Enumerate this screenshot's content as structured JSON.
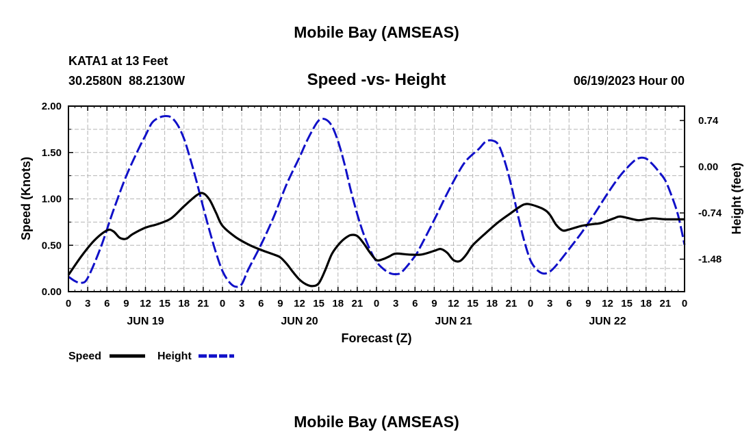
{
  "header": {
    "title": "Mobile Bay (AMSEAS)",
    "station": "KATA1 at 13 Feet",
    "coords": "30.2580N  88.2130W",
    "subtitle": "Speed -vs- Height",
    "datetime": "06/19/2023 Hour 00"
  },
  "footer": {
    "title": "Mobile Bay (AMSEAS)"
  },
  "colors": {
    "speed": "#000000",
    "height": "#1010c8",
    "grid": "#b4b4b4"
  },
  "chart_data": {
    "type": "line",
    "title": "Speed -vs- Height",
    "xlabel": "Forecast (Z)",
    "ylabel": "Speed (Knots)",
    "y2label": "Height (feet)",
    "x_unit": "hours from 06/19/2023 00Z",
    "xlim": [
      0,
      96
    ],
    "ylim": [
      0,
      2.0
    ],
    "y2lim": [
      -2.0,
      0.97
    ],
    "grid": true,
    "legend_position": "bottom-left",
    "x_ticks": [
      {
        "x": 0,
        "label": "0"
      },
      {
        "x": 3,
        "label": "3"
      },
      {
        "x": 6,
        "label": "6"
      },
      {
        "x": 9,
        "label": "9"
      },
      {
        "x": 12,
        "label": "12"
      },
      {
        "x": 15,
        "label": "15"
      },
      {
        "x": 18,
        "label": "18"
      },
      {
        "x": 21,
        "label": "21"
      },
      {
        "x": 24,
        "label": "0"
      },
      {
        "x": 27,
        "label": "3"
      },
      {
        "x": 30,
        "label": "6"
      },
      {
        "x": 33,
        "label": "9"
      },
      {
        "x": 36,
        "label": "12"
      },
      {
        "x": 39,
        "label": "15"
      },
      {
        "x": 42,
        "label": "18"
      },
      {
        "x": 45,
        "label": "21"
      },
      {
        "x": 48,
        "label": "0"
      },
      {
        "x": 51,
        "label": "3"
      },
      {
        "x": 54,
        "label": "6"
      },
      {
        "x": 57,
        "label": "9"
      },
      {
        "x": 60,
        "label": "12"
      },
      {
        "x": 63,
        "label": "15"
      },
      {
        "x": 66,
        "label": "18"
      },
      {
        "x": 69,
        "label": "21"
      },
      {
        "x": 72,
        "label": "0"
      },
      {
        "x": 75,
        "label": "3"
      },
      {
        "x": 78,
        "label": "6"
      },
      {
        "x": 81,
        "label": "9"
      },
      {
        "x": 84,
        "label": "12"
      },
      {
        "x": 87,
        "label": "15"
      },
      {
        "x": 90,
        "label": "18"
      },
      {
        "x": 93,
        "label": "21"
      },
      {
        "x": 96,
        "label": "0"
      }
    ],
    "day_labels": [
      {
        "x": 12,
        "label": "JUN 19"
      },
      {
        "x": 36,
        "label": "JUN 20"
      },
      {
        "x": 60,
        "label": "JUN 21"
      },
      {
        "x": 84,
        "label": "JUN 22"
      }
    ],
    "y_ticks": [
      {
        "y": 0.0,
        "label": "0.00"
      },
      {
        "y": 0.5,
        "label": "0.50"
      },
      {
        "y": 1.0,
        "label": "1.00"
      },
      {
        "y": 1.5,
        "label": "1.50"
      },
      {
        "y": 2.0,
        "label": "2.00"
      }
    ],
    "y2_ticks": [
      {
        "y": 0.74,
        "label": "0.74"
      },
      {
        "y": 0.0,
        "label": "0.00"
      },
      {
        "y": -0.74,
        "label": "-0.74"
      },
      {
        "y": -1.48,
        "label": "-1.48"
      }
    ],
    "series": [
      {
        "name": "Speed",
        "axis": "left",
        "style": "solid",
        "points": [
          [
            0,
            0.18
          ],
          [
            2,
            0.38
          ],
          [
            4,
            0.55
          ],
          [
            6,
            0.66
          ],
          [
            7,
            0.65
          ],
          [
            8,
            0.58
          ],
          [
            9,
            0.57
          ],
          [
            10,
            0.62
          ],
          [
            12,
            0.69
          ],
          [
            14,
            0.73
          ],
          [
            16,
            0.79
          ],
          [
            18,
            0.92
          ],
          [
            20,
            1.04
          ],
          [
            21,
            1.06
          ],
          [
            22,
            0.99
          ],
          [
            23,
            0.85
          ],
          [
            24,
            0.71
          ],
          [
            26,
            0.59
          ],
          [
            28,
            0.51
          ],
          [
            30,
            0.45
          ],
          [
            32,
            0.4
          ],
          [
            33,
            0.37
          ],
          [
            34,
            0.3
          ],
          [
            35,
            0.21
          ],
          [
            36,
            0.13
          ],
          [
            37,
            0.08
          ],
          [
            38,
            0.06
          ],
          [
            39,
            0.09
          ],
          [
            40,
            0.23
          ],
          [
            41,
            0.4
          ],
          [
            42,
            0.5
          ],
          [
            43,
            0.57
          ],
          [
            44,
            0.61
          ],
          [
            45,
            0.6
          ],
          [
            46,
            0.52
          ],
          [
            47,
            0.42
          ],
          [
            48,
            0.34
          ],
          [
            49,
            0.35
          ],
          [
            50,
            0.38
          ],
          [
            51,
            0.41
          ],
          [
            53,
            0.4
          ],
          [
            55,
            0.4
          ],
          [
            57,
            0.44
          ],
          [
            58,
            0.46
          ],
          [
            59,
            0.42
          ],
          [
            60,
            0.34
          ],
          [
            61,
            0.33
          ],
          [
            62,
            0.4
          ],
          [
            63,
            0.5
          ],
          [
            65,
            0.63
          ],
          [
            67,
            0.75
          ],
          [
            69,
            0.85
          ],
          [
            70,
            0.9
          ],
          [
            71,
            0.94
          ],
          [
            72,
            0.94
          ],
          [
            74,
            0.89
          ],
          [
            75,
            0.83
          ],
          [
            76,
            0.72
          ],
          [
            77,
            0.66
          ],
          [
            78,
            0.67
          ],
          [
            80,
            0.71
          ],
          [
            82,
            0.73
          ],
          [
            83,
            0.74
          ],
          [
            85,
            0.79
          ],
          [
            86,
            0.81
          ],
          [
            88,
            0.78
          ],
          [
            89,
            0.77
          ],
          [
            91,
            0.79
          ],
          [
            93,
            0.78
          ],
          [
            96,
            0.78
          ]
        ]
      },
      {
        "name": "Height",
        "axis": "right",
        "style": "dashed",
        "points": [
          [
            0,
            -1.76
          ],
          [
            1,
            -1.83
          ],
          [
            2,
            -1.86
          ],
          [
            3,
            -1.78
          ],
          [
            5,
            -1.3
          ],
          [
            7,
            -0.7
          ],
          [
            9,
            -0.15
          ],
          [
            11,
            0.3
          ],
          [
            12,
            0.5
          ],
          [
            13,
            0.7
          ],
          [
            14,
            0.78
          ],
          [
            15,
            0.81
          ],
          [
            16,
            0.79
          ],
          [
            17,
            0.67
          ],
          [
            18,
            0.45
          ],
          [
            19,
            0.12
          ],
          [
            20,
            -0.25
          ],
          [
            21,
            -0.65
          ],
          [
            22,
            -1.03
          ],
          [
            23,
            -1.38
          ],
          [
            24,
            -1.67
          ],
          [
            25,
            -1.84
          ],
          [
            26,
            -1.92
          ],
          [
            27,
            -1.88
          ],
          [
            28,
            -1.65
          ],
          [
            30,
            -1.25
          ],
          [
            32,
            -0.8
          ],
          [
            34,
            -0.28
          ],
          [
            36,
            0.15
          ],
          [
            37,
            0.38
          ],
          [
            38,
            0.58
          ],
          [
            39,
            0.74
          ],
          [
            40,
            0.76
          ],
          [
            41,
            0.66
          ],
          [
            42,
            0.41
          ],
          [
            43,
            0.05
          ],
          [
            44,
            -0.38
          ],
          [
            45,
            -0.76
          ],
          [
            46,
            -1.08
          ],
          [
            47,
            -1.33
          ],
          [
            48,
            -1.52
          ],
          [
            49,
            -1.63
          ],
          [
            50,
            -1.7
          ],
          [
            51,
            -1.72
          ],
          [
            52,
            -1.68
          ],
          [
            54,
            -1.43
          ],
          [
            55,
            -1.25
          ],
          [
            57,
            -0.85
          ],
          [
            59,
            -0.43
          ],
          [
            61,
            -0.05
          ],
          [
            62,
            0.1
          ],
          [
            63,
            0.2
          ],
          [
            64,
            0.29
          ],
          [
            65,
            0.4
          ],
          [
            66,
            0.42
          ],
          [
            67,
            0.35
          ],
          [
            68,
            0.08
          ],
          [
            69,
            -0.3
          ],
          [
            70,
            -0.76
          ],
          [
            71,
            -1.18
          ],
          [
            72,
            -1.5
          ],
          [
            73,
            -1.65
          ],
          [
            74,
            -1.71
          ],
          [
            75,
            -1.68
          ],
          [
            76,
            -1.58
          ],
          [
            78,
            -1.32
          ],
          [
            80,
            -1.05
          ],
          [
            82,
            -0.75
          ],
          [
            84,
            -0.43
          ],
          [
            86,
            -0.14
          ],
          [
            88,
            0.08
          ],
          [
            89,
            0.14
          ],
          [
            90,
            0.13
          ],
          [
            91,
            0.04
          ],
          [
            92,
            -0.08
          ],
          [
            93,
            -0.22
          ],
          [
            94,
            -0.47
          ],
          [
            95,
            -0.78
          ],
          [
            96,
            -1.25
          ]
        ]
      }
    ]
  },
  "legend": {
    "speed_label": "Speed",
    "height_label": "Height"
  }
}
